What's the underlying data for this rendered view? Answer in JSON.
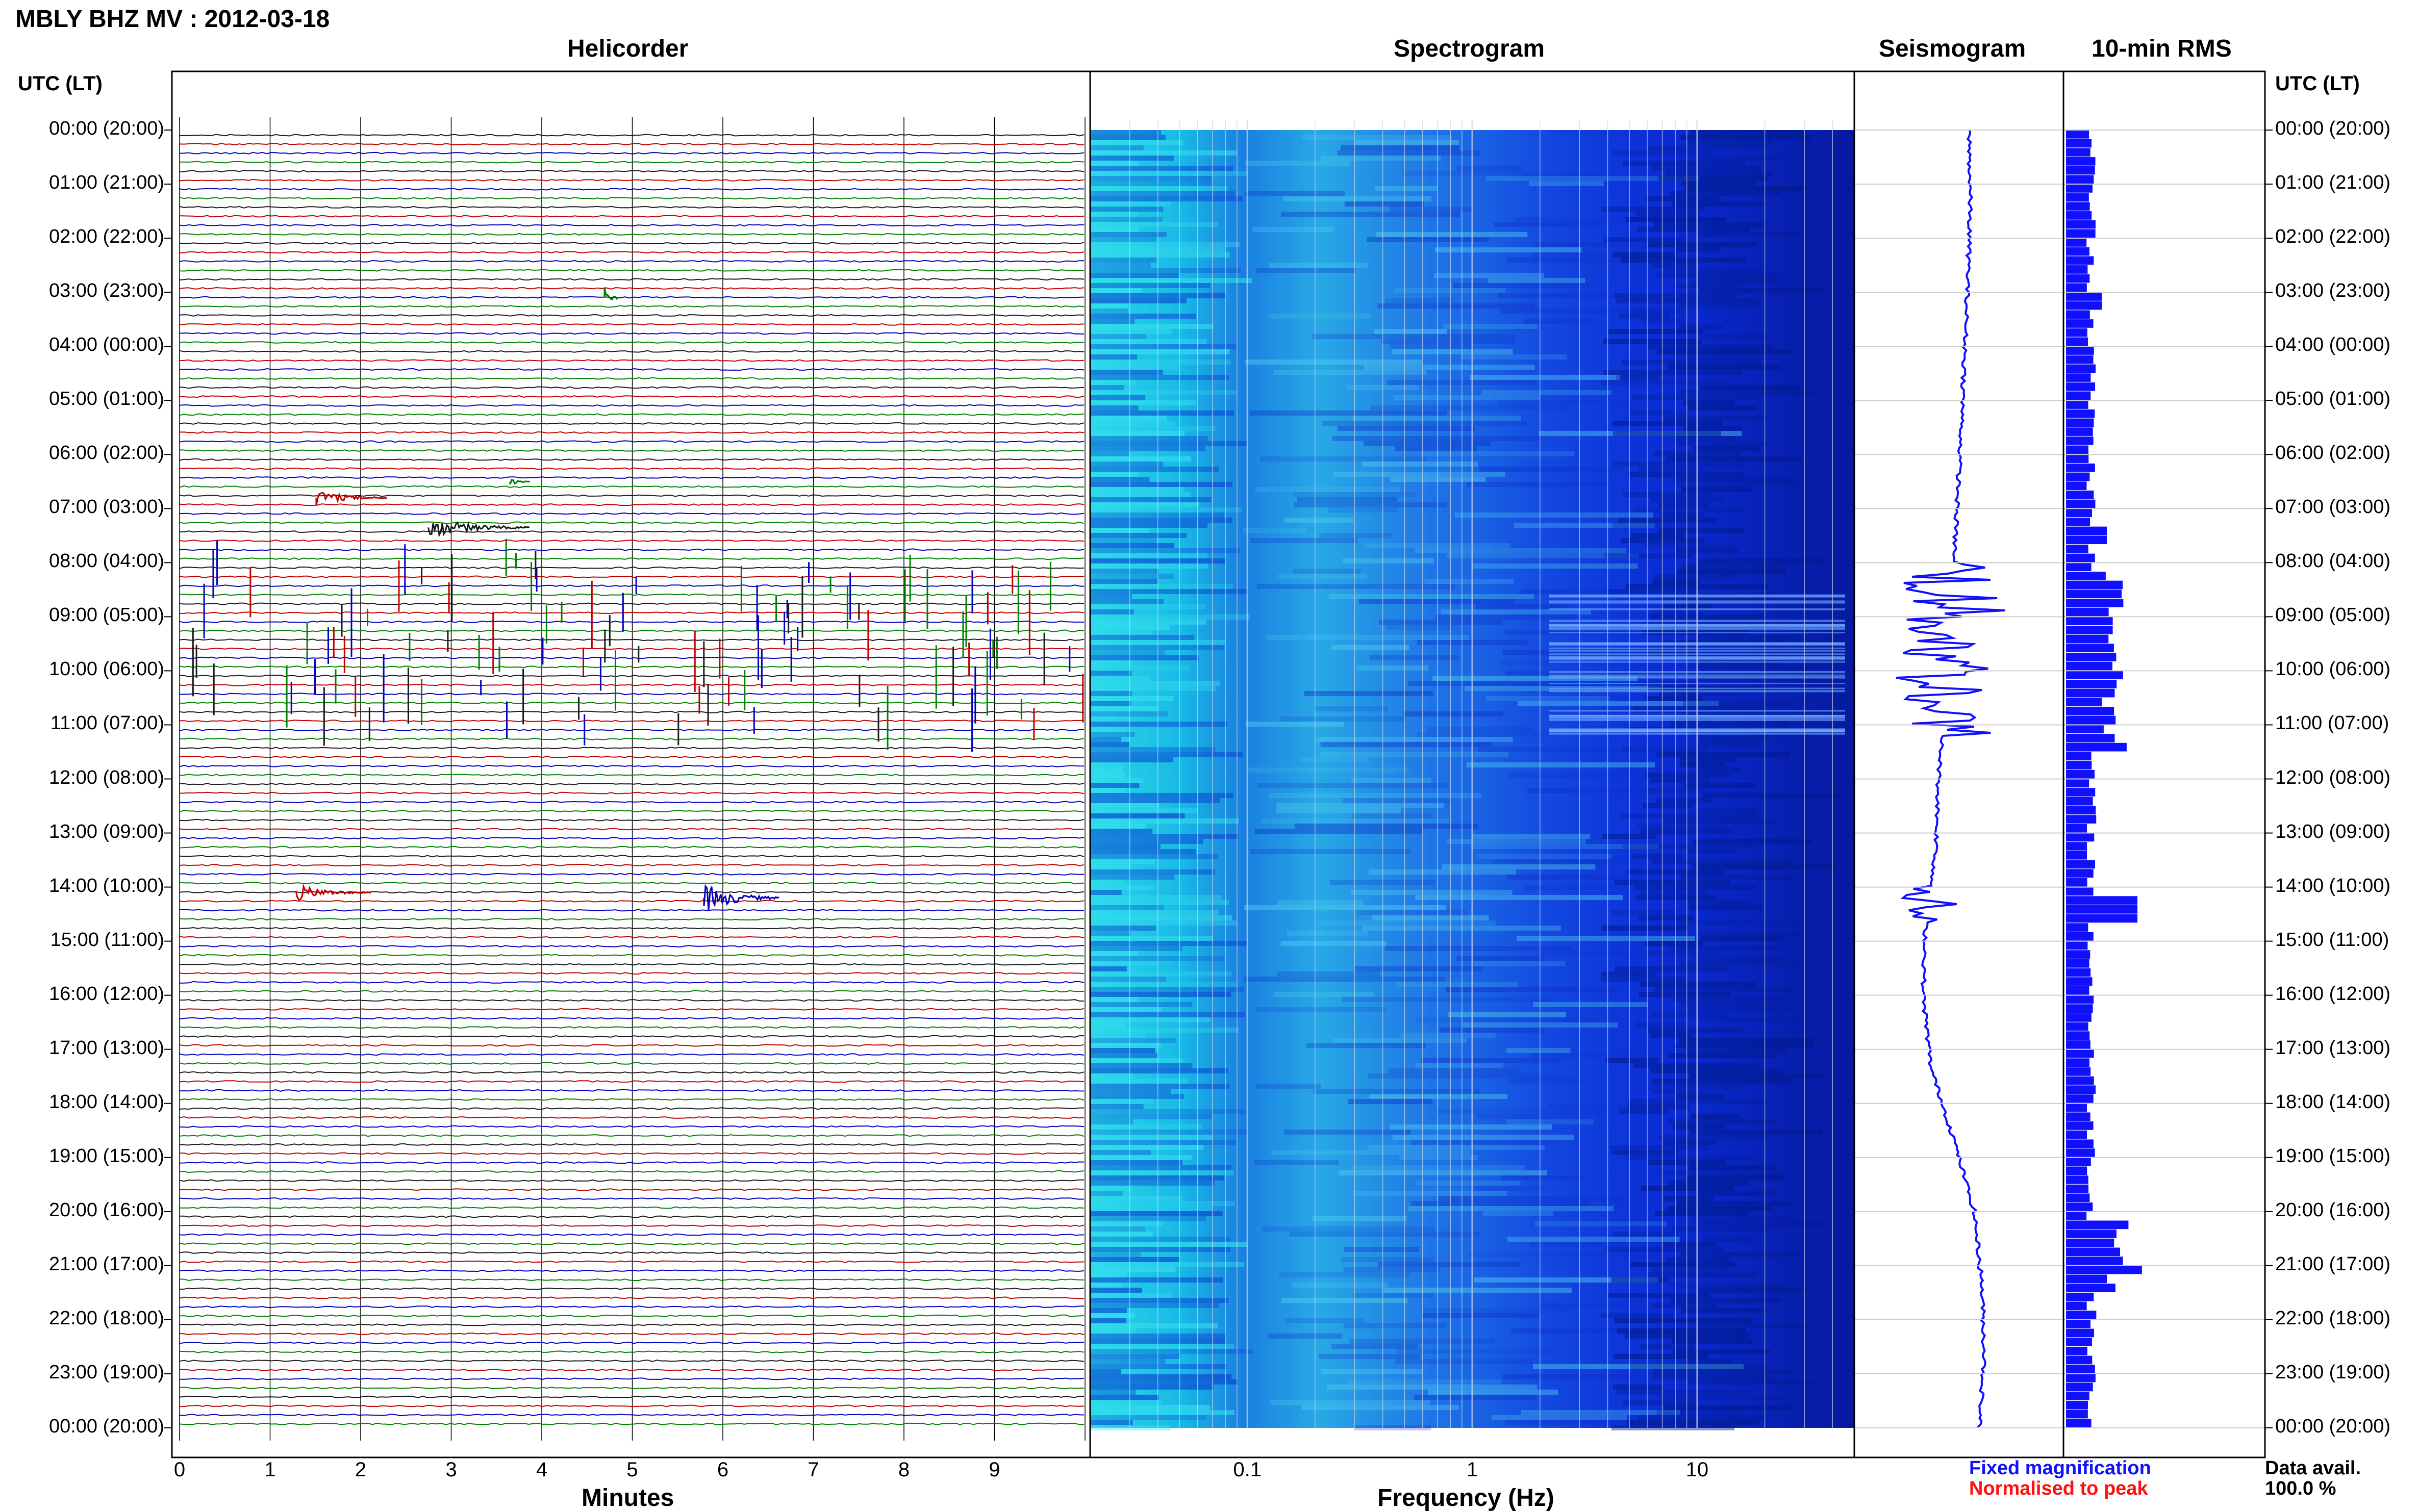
{
  "title": "MBLY BHZ MV : 2012-03-18",
  "panels": {
    "helicorder": "Helicorder",
    "spectrogram": "Spectrogram",
    "seismogram": "Seismogram",
    "rms": "10-min RMS"
  },
  "utc_header": "UTC (LT)",
  "hour_labels": [
    "00:00 (20:00)",
    "01:00 (21:00)",
    "02:00 (22:00)",
    "03:00 (23:00)",
    "04:00 (00:00)",
    "05:00 (01:00)",
    "06:00 (02:00)",
    "07:00 (03:00)",
    "08:00 (04:00)",
    "09:00 (05:00)",
    "10:00 (06:00)",
    "11:00 (07:00)",
    "12:00 (08:00)",
    "13:00 (09:00)",
    "14:00 (10:00)",
    "15:00 (11:00)",
    "16:00 (12:00)",
    "17:00 (13:00)",
    "18:00 (14:00)",
    "19:00 (15:00)",
    "20:00 (16:00)",
    "21:00 (17:00)",
    "22:00 (18:00)",
    "23:00 (19:00)",
    "00:00 (20:00)"
  ],
  "helicorder_axis": {
    "label": "Minutes",
    "ticks": [
      "0",
      "1",
      "2",
      "3",
      "4",
      "5",
      "6",
      "7",
      "8",
      "9"
    ],
    "trace_colors": [
      "#1a1a1a",
      "#c00000",
      "#0000c0",
      "#008000"
    ]
  },
  "spectrogram_axis": {
    "label": "Frequency (Hz)",
    "ticks": [
      "0.1",
      "1",
      "10"
    ],
    "scale": "log"
  },
  "legend": {
    "fixed": "Fixed magnification",
    "fixed_color": "#1010ff",
    "normalised": "Normalised to peak",
    "normalised_color": "#ff1010"
  },
  "data_availability": {
    "label": "Data avail.",
    "value": "100.0 %"
  }
}
